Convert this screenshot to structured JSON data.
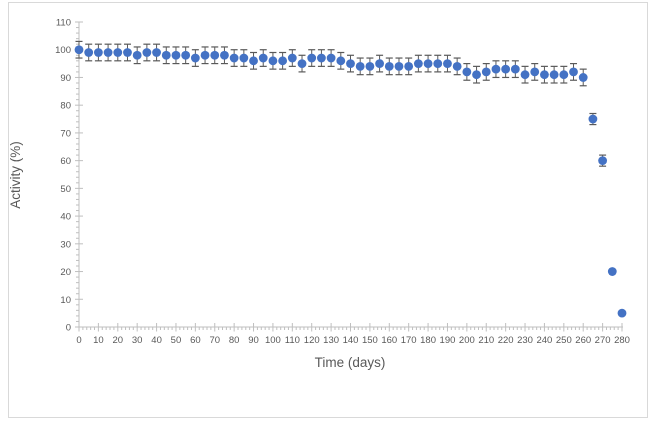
{
  "chart_data": {
    "type": "scatter",
    "title": "",
    "xlabel": "Time (days)",
    "ylabel": "Activity (%)",
    "xlim": [
      0,
      280
    ],
    "ylim": [
      0,
      110
    ],
    "x_ticks": [
      0,
      10,
      20,
      30,
      40,
      50,
      60,
      70,
      80,
      90,
      100,
      110,
      120,
      130,
      140,
      150,
      160,
      170,
      180,
      190,
      200,
      210,
      220,
      230,
      240,
      250,
      260,
      270,
      280
    ],
    "y_ticks": [
      0,
      10,
      20,
      30,
      40,
      50,
      60,
      70,
      80,
      90,
      100,
      110
    ],
    "x_minor_tick_step": 2,
    "y_minor_tick_step": 2,
    "grid": false,
    "legend_position": "none",
    "marker_shape": "circle",
    "marker_color": "#4472c4",
    "error_bar_color": "#595959",
    "axis_line_color": "#bfbfbf",
    "tick_label_color": "#595959",
    "axis_title_color": "#595959",
    "series": [
      {
        "name": "Activity",
        "x": [
          0,
          5,
          10,
          15,
          20,
          25,
          30,
          35,
          40,
          45,
          50,
          55,
          60,
          65,
          70,
          75,
          80,
          85,
          90,
          95,
          100,
          105,
          110,
          115,
          120,
          125,
          130,
          135,
          140,
          145,
          150,
          155,
          160,
          165,
          170,
          175,
          180,
          185,
          190,
          195,
          200,
          205,
          210,
          215,
          220,
          225,
          230,
          235,
          240,
          245,
          250,
          255,
          260,
          265,
          270,
          275,
          280
        ],
        "y": [
          100,
          99,
          99,
          99,
          99,
          99,
          98,
          99,
          99,
          98,
          98,
          98,
          97,
          98,
          98,
          98,
          97,
          97,
          96,
          97,
          96,
          96,
          97,
          95,
          97,
          97,
          97,
          96,
          95,
          94,
          94,
          95,
          94,
          94,
          94,
          95,
          95,
          95,
          95,
          94,
          92,
          91,
          92,
          93,
          93,
          93,
          91,
          92,
          91,
          91,
          91,
          92,
          90,
          75,
          60,
          20,
          5
        ],
        "y_err": [
          3,
          3,
          3,
          3,
          3,
          3,
          3,
          3,
          3,
          3,
          3,
          3,
          3,
          3,
          3,
          3,
          3,
          3,
          3,
          3,
          3,
          3,
          3,
          3,
          3,
          3,
          3,
          3,
          3,
          3,
          3,
          3,
          3,
          3,
          3,
          3,
          3,
          3,
          3,
          3,
          3,
          3,
          3,
          3,
          3,
          3,
          3,
          3,
          3,
          3,
          3,
          3,
          3,
          2,
          2,
          0,
          0
        ]
      }
    ]
  }
}
